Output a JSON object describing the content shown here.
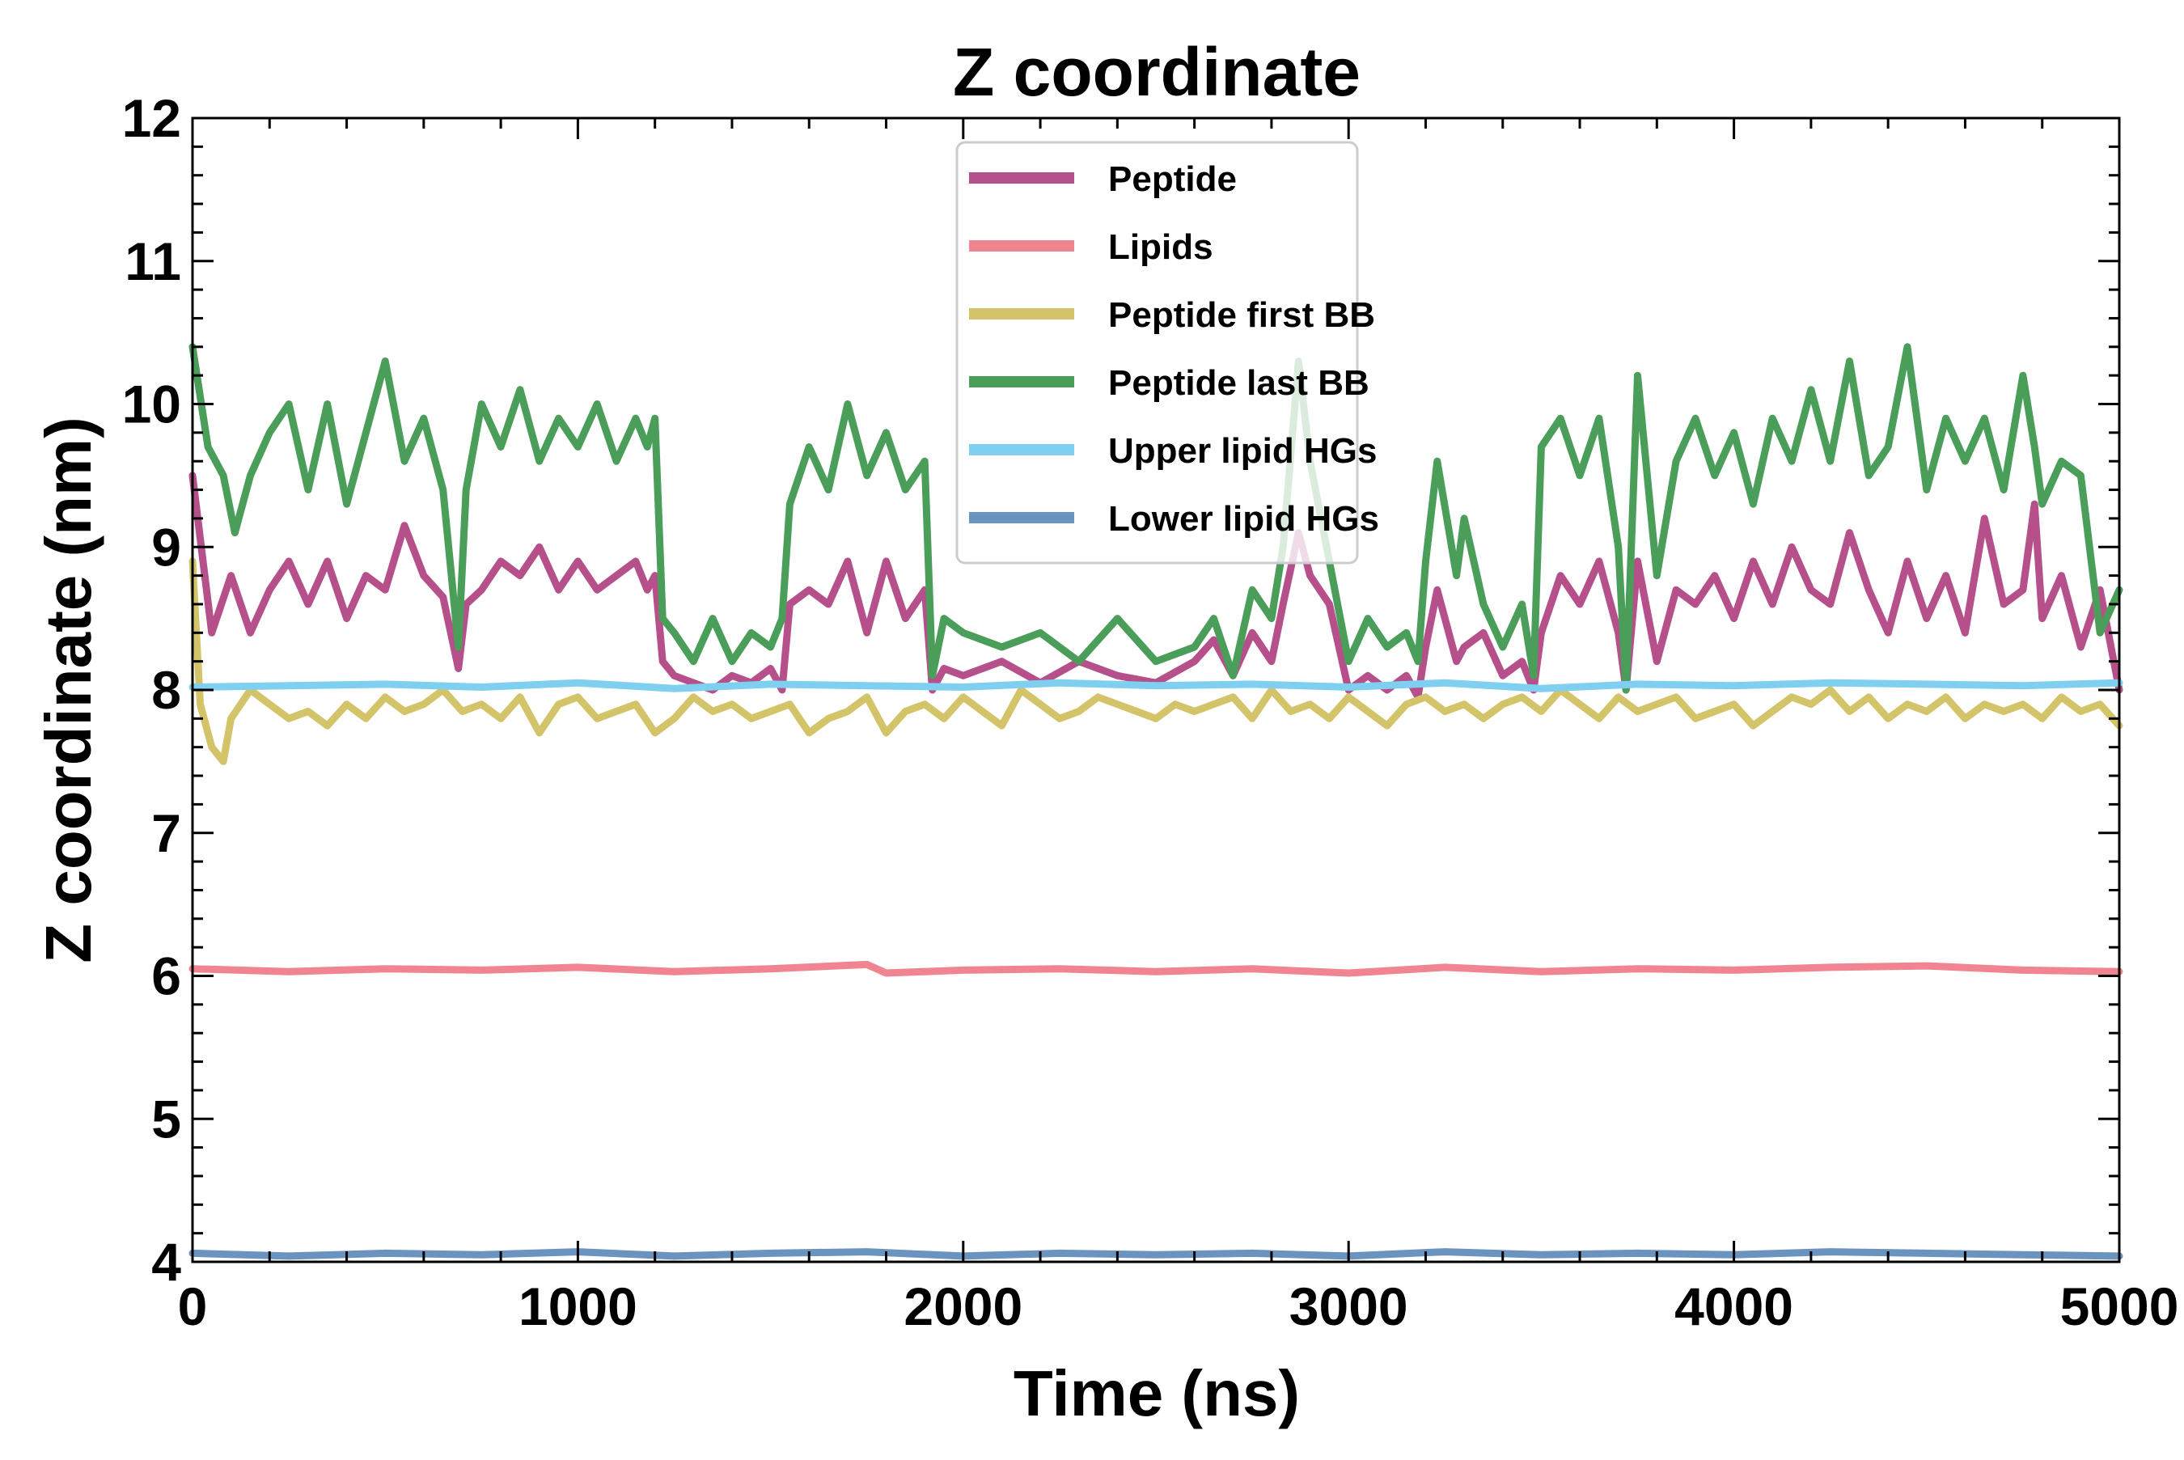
{
  "chart_data": {
    "type": "line",
    "title": "Z coordinate",
    "xlabel": "Time (ns)",
    "ylabel": "Z coordinate (nm)",
    "xlim": [
      0,
      5000
    ],
    "ylim": [
      4,
      12
    ],
    "xticks": [
      0,
      1000,
      2000,
      3000,
      4000,
      5000
    ],
    "yticks": [
      4,
      5,
      6,
      7,
      8,
      9,
      10,
      11,
      12
    ],
    "legend_position": "top-center",
    "grid": false,
    "series": [
      {
        "name": "Peptide",
        "color": "#b5508a",
        "x": [
          0,
          50,
          100,
          150,
          200,
          250,
          300,
          350,
          400,
          450,
          500,
          550,
          600,
          650,
          690,
          710,
          750,
          800,
          850,
          900,
          950,
          1000,
          1050,
          1100,
          1150,
          1180,
          1200,
          1220,
          1250,
          1300,
          1350,
          1400,
          1450,
          1500,
          1530,
          1550,
          1600,
          1650,
          1700,
          1750,
          1800,
          1850,
          1900,
          1920,
          1950,
          2000,
          2100,
          2200,
          2300,
          2400,
          2500,
          2600,
          2650,
          2700,
          2750,
          2800,
          2830,
          2870,
          2900,
          2950,
          3000,
          3050,
          3100,
          3150,
          3180,
          3200,
          3230,
          3280,
          3300,
          3350,
          3400,
          3450,
          3480,
          3500,
          3550,
          3600,
          3650,
          3700,
          3720,
          3750,
          3800,
          3850,
          3900,
          3950,
          4000,
          4050,
          4100,
          4150,
          4200,
          4250,
          4300,
          4350,
          4400,
          4450,
          4500,
          4550,
          4600,
          4650,
          4700,
          4750,
          4780,
          4800,
          4850,
          4900,
          4950,
          5000
        ],
        "y": [
          9.5,
          8.4,
          8.8,
          8.4,
          8.7,
          8.9,
          8.6,
          8.9,
          8.5,
          8.8,
          8.7,
          9.15,
          8.8,
          8.65,
          8.15,
          8.6,
          8.7,
          8.9,
          8.8,
          9.0,
          8.7,
          8.9,
          8.7,
          8.8,
          8.9,
          8.7,
          8.8,
          8.2,
          8.1,
          8.05,
          8.0,
          8.1,
          8.05,
          8.15,
          8.0,
          8.6,
          8.7,
          8.6,
          8.9,
          8.4,
          8.9,
          8.5,
          8.7,
          8.0,
          8.15,
          8.1,
          8.2,
          8.05,
          8.2,
          8.1,
          8.05,
          8.2,
          8.35,
          8.1,
          8.4,
          8.2,
          8.6,
          9.1,
          8.8,
          8.6,
          8.0,
          8.1,
          8.0,
          8.1,
          7.95,
          8.3,
          8.7,
          8.2,
          8.3,
          8.4,
          8.1,
          8.2,
          8.0,
          8.4,
          8.8,
          8.6,
          8.9,
          8.4,
          8.0,
          8.9,
          8.2,
          8.7,
          8.6,
          8.8,
          8.5,
          8.9,
          8.6,
          9.0,
          8.7,
          8.6,
          9.1,
          8.7,
          8.4,
          8.9,
          8.5,
          8.8,
          8.4,
          9.2,
          8.6,
          8.7,
          9.3,
          8.5,
          8.8,
          8.3,
          8.7,
          8.0
        ]
      },
      {
        "name": "Lipids",
        "color": "#f08490",
        "x": [
          0,
          250,
          500,
          750,
          1000,
          1250,
          1500,
          1750,
          1800,
          2000,
          2250,
          2500,
          2750,
          3000,
          3250,
          3500,
          3750,
          4000,
          4250,
          4500,
          4750,
          5000
        ],
        "y": [
          6.05,
          6.03,
          6.05,
          6.04,
          6.06,
          6.03,
          6.05,
          6.08,
          6.02,
          6.04,
          6.05,
          6.03,
          6.05,
          6.02,
          6.06,
          6.03,
          6.05,
          6.04,
          6.06,
          6.07,
          6.04,
          6.03
        ]
      },
      {
        "name": "Peptide first BB",
        "color": "#d4c469",
        "x": [
          0,
          20,
          50,
          80,
          100,
          150,
          200,
          250,
          300,
          350,
          400,
          450,
          500,
          550,
          600,
          650,
          700,
          750,
          800,
          850,
          900,
          950,
          1000,
          1050,
          1100,
          1150,
          1200,
          1250,
          1300,
          1350,
          1400,
          1450,
          1500,
          1550,
          1600,
          1650,
          1700,
          1750,
          1800,
          1850,
          1900,
          1950,
          2000,
          2050,
          2100,
          2150,
          2200,
          2250,
          2300,
          2350,
          2400,
          2450,
          2500,
          2550,
          2600,
          2650,
          2700,
          2750,
          2800,
          2850,
          2900,
          2950,
          3000,
          3050,
          3100,
          3150,
          3200,
          3250,
          3300,
          3350,
          3400,
          3450,
          3500,
          3550,
          3600,
          3650,
          3700,
          3750,
          3800,
          3850,
          3900,
          3950,
          4000,
          4050,
          4100,
          4150,
          4200,
          4250,
          4300,
          4350,
          4400,
          4450,
          4500,
          4550,
          4600,
          4650,
          4700,
          4750,
          4800,
          4850,
          4900,
          4950,
          5000
        ],
        "y": [
          8.9,
          7.9,
          7.6,
          7.5,
          7.8,
          8.0,
          7.9,
          7.8,
          7.85,
          7.75,
          7.9,
          7.8,
          7.95,
          7.85,
          7.9,
          8.0,
          7.85,
          7.9,
          7.8,
          7.95,
          7.7,
          7.9,
          7.95,
          7.8,
          7.85,
          7.9,
          7.7,
          7.8,
          7.95,
          7.85,
          7.9,
          7.8,
          7.85,
          7.9,
          7.7,
          7.8,
          7.85,
          7.95,
          7.7,
          7.85,
          7.9,
          7.8,
          7.95,
          7.85,
          7.75,
          8.0,
          7.9,
          7.8,
          7.85,
          7.95,
          7.9,
          7.85,
          7.8,
          7.9,
          7.85,
          7.9,
          7.95,
          7.8,
          8.0,
          7.85,
          7.9,
          7.8,
          7.95,
          7.85,
          7.75,
          7.9,
          7.95,
          7.85,
          7.9,
          7.8,
          7.9,
          7.95,
          7.85,
          8.0,
          7.9,
          7.8,
          7.95,
          7.85,
          7.9,
          7.95,
          7.8,
          7.85,
          7.9,
          7.75,
          7.85,
          7.95,
          7.9,
          8.0,
          7.85,
          7.95,
          7.8,
          7.9,
          7.85,
          7.95,
          7.8,
          7.9,
          7.85,
          7.9,
          7.8,
          7.95,
          7.85,
          7.9,
          7.75
        ]
      },
      {
        "name": "Peptide last BB",
        "color": "#4a9e5a",
        "x": [
          0,
          40,
          80,
          110,
          150,
          200,
          250,
          300,
          350,
          400,
          450,
          500,
          550,
          600,
          650,
          690,
          710,
          750,
          800,
          850,
          900,
          950,
          1000,
          1050,
          1100,
          1150,
          1180,
          1200,
          1220,
          1250,
          1300,
          1350,
          1400,
          1450,
          1500,
          1530,
          1550,
          1600,
          1650,
          1700,
          1750,
          1800,
          1850,
          1900,
          1920,
          1950,
          2000,
          2100,
          2200,
          2300,
          2400,
          2500,
          2600,
          2650,
          2700,
          2750,
          2800,
          2830,
          2870,
          2900,
          2950,
          3000,
          3050,
          3100,
          3150,
          3180,
          3200,
          3230,
          3280,
          3300,
          3350,
          3400,
          3450,
          3480,
          3500,
          3550,
          3600,
          3650,
          3700,
          3720,
          3750,
          3800,
          3850,
          3900,
          3950,
          4000,
          4050,
          4100,
          4150,
          4200,
          4250,
          4300,
          4350,
          4400,
          4450,
          4500,
          4550,
          4600,
          4650,
          4700,
          4750,
          4780,
          4800,
          4850,
          4900,
          4950,
          5000
        ],
        "y": [
          10.4,
          9.7,
          9.5,
          9.1,
          9.5,
          9.8,
          10.0,
          9.4,
          10.0,
          9.3,
          9.8,
          10.3,
          9.6,
          9.9,
          9.4,
          8.3,
          9.4,
          10.0,
          9.7,
          10.1,
          9.6,
          9.9,
          9.7,
          10.0,
          9.6,
          9.9,
          9.7,
          9.9,
          8.5,
          8.4,
          8.2,
          8.5,
          8.2,
          8.4,
          8.3,
          8.5,
          9.3,
          9.7,
          9.4,
          10.0,
          9.5,
          9.8,
          9.4,
          9.6,
          8.1,
          8.5,
          8.4,
          8.3,
          8.4,
          8.2,
          8.5,
          8.2,
          8.3,
          8.5,
          8.1,
          8.7,
          8.5,
          9.0,
          10.3,
          9.6,
          8.9,
          8.2,
          8.5,
          8.3,
          8.4,
          8.2,
          8.9,
          9.6,
          8.8,
          9.2,
          8.6,
          8.3,
          8.6,
          8.1,
          9.7,
          9.9,
          9.5,
          9.9,
          9.0,
          8.0,
          10.2,
          8.8,
          9.6,
          9.9,
          9.5,
          9.8,
          9.3,
          9.9,
          9.6,
          10.1,
          9.6,
          10.3,
          9.5,
          9.7,
          10.4,
          9.4,
          9.9,
          9.6,
          9.9,
          9.4,
          10.2,
          9.7,
          9.3,
          9.6,
          9.5,
          8.4,
          8.7
        ]
      },
      {
        "name": "Upper lipid HGs",
        "color": "#7fd0f0",
        "x": [
          0,
          250,
          500,
          750,
          1000,
          1250,
          1500,
          1750,
          2000,
          2250,
          2500,
          2750,
          3000,
          3250,
          3500,
          3750,
          4000,
          4250,
          4500,
          4750,
          5000
        ],
        "y": [
          8.02,
          8.03,
          8.04,
          8.02,
          8.05,
          8.01,
          8.04,
          8.03,
          8.02,
          8.05,
          8.03,
          8.04,
          8.02,
          8.05,
          8.01,
          8.04,
          8.03,
          8.05,
          8.04,
          8.03,
          8.05
        ]
      },
      {
        "name": "Lower lipid HGs",
        "color": "#6b93c0",
        "x": [
          0,
          250,
          500,
          750,
          1000,
          1250,
          1500,
          1750,
          2000,
          2250,
          2500,
          2750,
          3000,
          3250,
          3500,
          3750,
          4000,
          4250,
          4500,
          4750,
          5000
        ],
        "y": [
          4.06,
          4.04,
          4.06,
          4.05,
          4.07,
          4.04,
          4.06,
          4.07,
          4.04,
          4.06,
          4.05,
          4.06,
          4.04,
          4.07,
          4.05,
          4.06,
          4.05,
          4.07,
          4.06,
          4.05,
          4.04
        ]
      }
    ]
  }
}
